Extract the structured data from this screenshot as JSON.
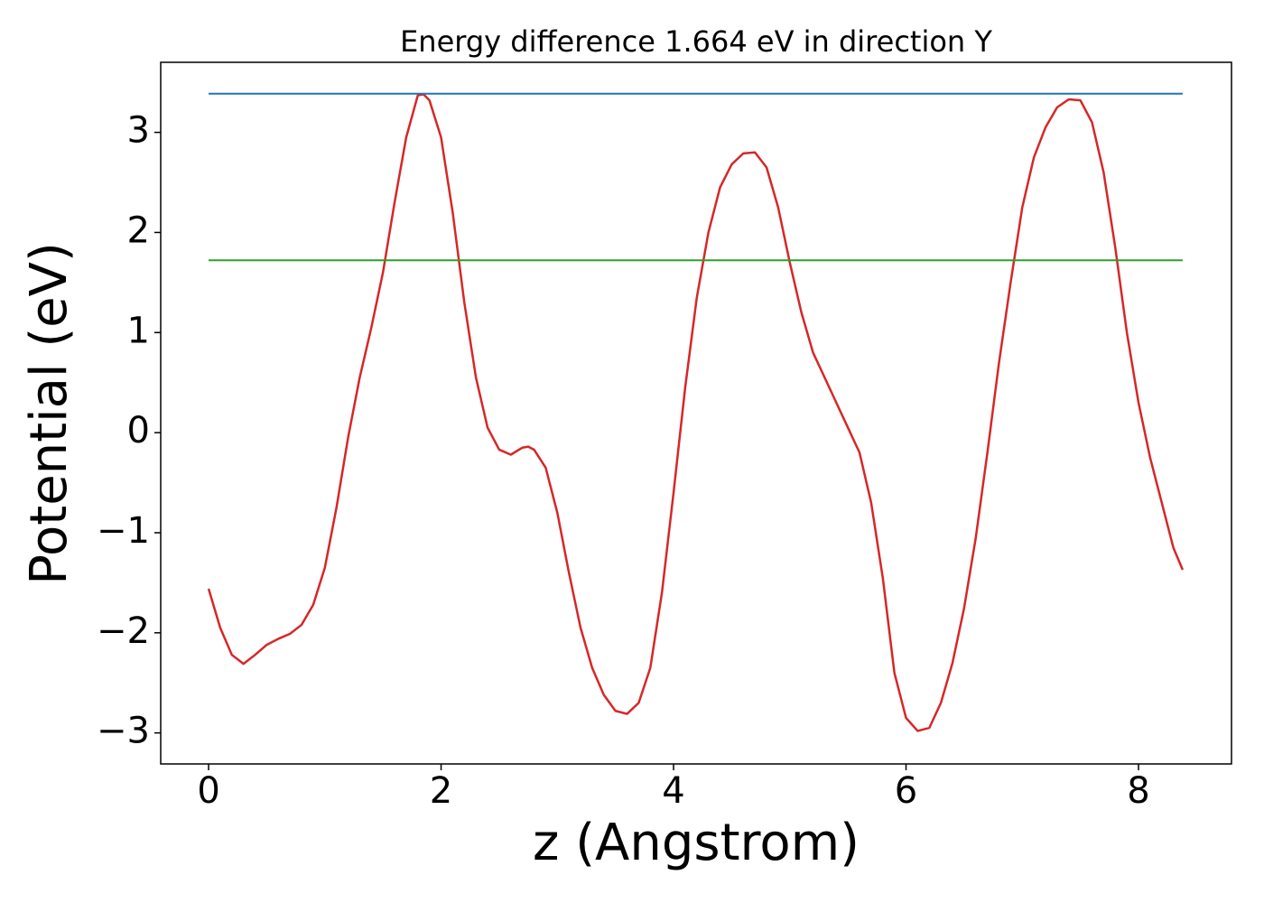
{
  "chart_data": {
    "type": "line",
    "title": "Energy difference 1.664 eV in direction Y",
    "xlabel": "z (Angstrom)",
    "ylabel": "Potential (eV)",
    "xlim": [
      -0.412,
      8.8
    ],
    "ylim": [
      -3.31,
      3.7
    ],
    "xticks": [
      0,
      2,
      4,
      6,
      8
    ],
    "yticks": [
      {
        "value": -3,
        "label": "−3"
      },
      {
        "value": -2,
        "label": "−2"
      },
      {
        "value": -1,
        "label": "−1"
      },
      0,
      1,
      2,
      3
    ],
    "grid": false,
    "series": [
      {
        "color": "#d62728",
        "x": [
          0,
          0.1,
          0.2,
          0.3,
          0.4,
          0.5,
          0.6,
          0.7,
          0.8,
          0.9,
          1.0,
          1.1,
          1.2,
          1.3,
          1.4,
          1.5,
          1.6,
          1.7,
          1.8,
          1.85,
          1.9,
          2.0,
          2.1,
          2.2,
          2.3,
          2.4,
          2.5,
          2.6,
          2.7,
          2.75,
          2.8,
          2.9,
          3.0,
          3.1,
          3.2,
          3.3,
          3.4,
          3.5,
          3.6,
          3.7,
          3.8,
          3.9,
          4.0,
          4.1,
          4.2,
          4.3,
          4.4,
          4.5,
          4.6,
          4.7,
          4.8,
          4.9,
          5.0,
          5.1,
          5.2,
          5.3,
          5.4,
          5.5,
          5.6,
          5.7,
          5.8,
          5.9,
          6.0,
          6.1,
          6.2,
          6.3,
          6.4,
          6.5,
          6.6,
          6.7,
          6.8,
          6.9,
          7.0,
          7.1,
          7.2,
          7.3,
          7.4,
          7.5,
          7.6,
          7.7,
          7.8,
          7.9,
          8.0,
          8.1,
          8.2,
          8.3,
          8.38
        ],
        "values": [
          -1.56,
          -1.95,
          -2.22,
          -2.31,
          -2.22,
          -2.12,
          -2.06,
          -2.01,
          -1.92,
          -1.72,
          -1.35,
          -0.75,
          -0.05,
          0.55,
          1.05,
          1.6,
          2.3,
          2.95,
          3.37,
          3.38,
          3.32,
          2.95,
          2.2,
          1.3,
          0.55,
          0.05,
          -0.17,
          -0.22,
          -0.15,
          -0.14,
          -0.17,
          -0.35,
          -0.8,
          -1.4,
          -1.95,
          -2.35,
          -2.62,
          -2.78,
          -2.81,
          -2.7,
          -2.35,
          -1.6,
          -0.6,
          0.45,
          1.35,
          2.0,
          2.45,
          2.68,
          2.79,
          2.8,
          2.65,
          2.25,
          1.7,
          1.2,
          0.8,
          0.55,
          0.3,
          0.05,
          -0.2,
          -0.7,
          -1.45,
          -2.4,
          -2.85,
          -2.98,
          -2.95,
          -2.7,
          -2.3,
          -1.75,
          -1.05,
          -0.2,
          0.7,
          1.5,
          2.25,
          2.75,
          3.05,
          3.25,
          3.33,
          3.32,
          3.1,
          2.6,
          1.85,
          1.0,
          0.3,
          -0.25,
          -0.7,
          -1.15,
          -1.37
        ]
      },
      {
        "color": "#1f77b4",
        "x": [
          0,
          8.38
        ],
        "values": [
          3.386,
          3.386
        ]
      },
      {
        "color": "#2ca02c",
        "x": [
          0,
          8.38
        ],
        "values": [
          1.722,
          1.722
        ]
      }
    ]
  }
}
